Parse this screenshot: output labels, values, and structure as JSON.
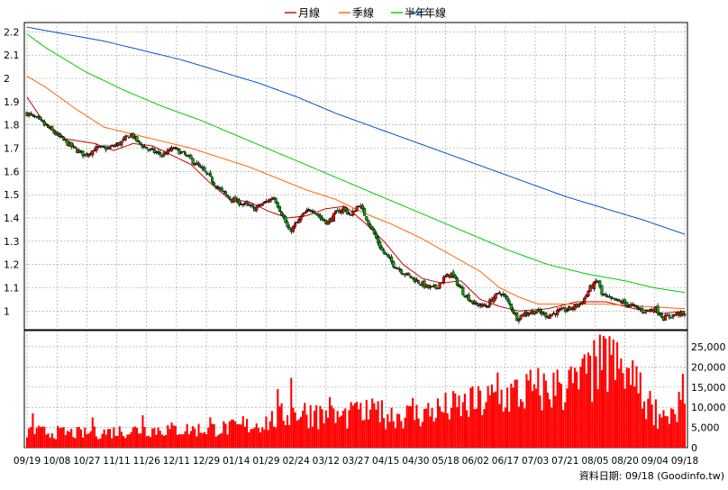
{
  "legend": {
    "items": [
      {
        "label": "月線",
        "color": "#cc0000"
      },
      {
        "label": "季線",
        "color": "#ff6600"
      },
      {
        "label": "半年",
        "color": "#00cc00"
      },
      {
        "label": "年線",
        "color": "#0055cc"
      }
    ]
  },
  "footer": {
    "source": "資料日期: 09/18 (Goodinfo.tw)"
  },
  "chart_data": {
    "type": "line",
    "price": {
      "ylim": [
        0.92,
        2.24
      ],
      "yticks": [
        1,
        1.1,
        1.2,
        1.3,
        1.4,
        1.5,
        1.6,
        1.7,
        1.8,
        1.9,
        2,
        2.1,
        2.2
      ],
      "ytick_labels": [
        "1",
        "1.1",
        "1.2",
        "1.3",
        "1.4",
        "1.5",
        "1.6",
        "1.7",
        "1.8",
        "1.9",
        "2",
        "2.1",
        "2.2"
      ],
      "series": [
        {
          "name": "月線",
          "color": "#cc0000",
          "keyframes": [
            [
              0,
              1.92
            ],
            [
              8,
              1.82
            ],
            [
              20,
              1.74
            ],
            [
              35,
              1.72
            ],
            [
              45,
              1.69
            ],
            [
              55,
              1.72
            ],
            [
              65,
              1.71
            ],
            [
              75,
              1.67
            ],
            [
              85,
              1.63
            ],
            [
              95,
              1.55
            ],
            [
              105,
              1.48
            ],
            [
              115,
              1.47
            ],
            [
              125,
              1.43
            ],
            [
              135,
              1.4
            ],
            [
              145,
              1.41
            ],
            [
              155,
              1.44
            ],
            [
              165,
              1.45
            ],
            [
              175,
              1.38
            ],
            [
              185,
              1.3
            ],
            [
              195,
              1.2
            ],
            [
              205,
              1.14
            ],
            [
              215,
              1.12
            ],
            [
              225,
              1.13
            ],
            [
              235,
              1.05
            ],
            [
              245,
              1.02
            ],
            [
              255,
              1.0
            ],
            [
              270,
              1.01
            ],
            [
              285,
              1.04
            ],
            [
              300,
              1.04
            ],
            [
              315,
              1.01
            ],
            [
              330,
              0.99
            ],
            [
              341,
              1.0
            ]
          ]
        },
        {
          "name": "季線",
          "color": "#ff6600",
          "keyframes": [
            [
              0,
              2.01
            ],
            [
              10,
              1.96
            ],
            [
              25,
              1.87
            ],
            [
              40,
              1.79
            ],
            [
              55,
              1.76
            ],
            [
              70,
              1.73
            ],
            [
              85,
              1.7
            ],
            [
              100,
              1.66
            ],
            [
              115,
              1.62
            ],
            [
              130,
              1.57
            ],
            [
              145,
              1.52
            ],
            [
              160,
              1.48
            ],
            [
              175,
              1.42
            ],
            [
              190,
              1.37
            ],
            [
              205,
              1.31
            ],
            [
              220,
              1.24
            ],
            [
              235,
              1.17
            ],
            [
              245,
              1.1
            ],
            [
              255,
              1.06
            ],
            [
              265,
              1.03
            ],
            [
              280,
              1.03
            ],
            [
              300,
              1.03
            ],
            [
              320,
              1.02
            ],
            [
              341,
              1.01
            ]
          ]
        },
        {
          "name": "半年",
          "color": "#00cc00",
          "keyframes": [
            [
              0,
              2.19
            ],
            [
              10,
              2.13
            ],
            [
              30,
              2.03
            ],
            [
              50,
              1.95
            ],
            [
              70,
              1.88
            ],
            [
              90,
              1.82
            ],
            [
              110,
              1.75
            ],
            [
              130,
              1.68
            ],
            [
              150,
              1.61
            ],
            [
              170,
              1.54
            ],
            [
              190,
              1.47
            ],
            [
              210,
              1.4
            ],
            [
              230,
              1.33
            ],
            [
              250,
              1.26
            ],
            [
              270,
              1.2
            ],
            [
              290,
              1.16
            ],
            [
              310,
              1.13
            ],
            [
              325,
              1.1
            ],
            [
              341,
              1.08
            ]
          ]
        },
        {
          "name": "年線",
          "color": "#0055cc",
          "keyframes": [
            [
              0,
              2.22
            ],
            [
              20,
              2.19
            ],
            [
              40,
              2.16
            ],
            [
              60,
              2.12
            ],
            [
              80,
              2.08
            ],
            [
              100,
              2.03
            ],
            [
              120,
              1.98
            ],
            [
              140,
              1.92
            ],
            [
              160,
              1.85
            ],
            [
              180,
              1.79
            ],
            [
              200,
              1.73
            ],
            [
              220,
              1.67
            ],
            [
              240,
              1.61
            ],
            [
              260,
              1.55
            ],
            [
              280,
              1.49
            ],
            [
              300,
              1.44
            ],
            [
              320,
              1.39
            ],
            [
              341,
              1.33
            ]
          ]
        }
      ],
      "close_keyframes": [
        [
          0,
          1.85
        ],
        [
          6,
          1.82
        ],
        [
          12,
          1.78
        ],
        [
          18,
          1.74
        ],
        [
          24,
          1.7
        ],
        [
          30,
          1.67
        ],
        [
          36,
          1.7
        ],
        [
          42,
          1.7
        ],
        [
          48,
          1.72
        ],
        [
          54,
          1.76
        ],
        [
          58,
          1.72
        ],
        [
          64,
          1.69
        ],
        [
          70,
          1.67
        ],
        [
          76,
          1.7
        ],
        [
          82,
          1.67
        ],
        [
          88,
          1.63
        ],
        [
          94,
          1.58
        ],
        [
          100,
          1.52
        ],
        [
          106,
          1.48
        ],
        [
          112,
          1.46
        ],
        [
          118,
          1.44
        ],
        [
          124,
          1.47
        ],
        [
          128,
          1.49
        ],
        [
          132,
          1.42
        ],
        [
          136,
          1.34
        ],
        [
          140,
          1.38
        ],
        [
          144,
          1.42
        ],
        [
          148,
          1.44
        ],
        [
          152,
          1.4
        ],
        [
          156,
          1.38
        ],
        [
          160,
          1.42
        ],
        [
          164,
          1.44
        ],
        [
          168,
          1.41
        ],
        [
          172,
          1.46
        ],
        [
          176,
          1.4
        ],
        [
          180,
          1.33
        ],
        [
          184,
          1.26
        ],
        [
          190,
          1.2
        ],
        [
          196,
          1.16
        ],
        [
          202,
          1.13
        ],
        [
          208,
          1.1
        ],
        [
          212,
          1.1
        ],
        [
          216,
          1.14
        ],
        [
          220,
          1.16
        ],
        [
          226,
          1.08
        ],
        [
          232,
          1.03
        ],
        [
          238,
          1.02
        ],
        [
          242,
          1.06
        ],
        [
          246,
          1.08
        ],
        [
          250,
          1.03
        ],
        [
          254,
          0.97
        ],
        [
          258,
          0.99
        ],
        [
          264,
          1.0
        ],
        [
          270,
          0.98
        ],
        [
          276,
          1.0
        ],
        [
          282,
          1.01
        ],
        [
          288,
          1.04
        ],
        [
          292,
          1.1
        ],
        [
          296,
          1.13
        ],
        [
          298,
          1.07
        ],
        [
          302,
          1.05
        ],
        [
          308,
          1.04
        ],
        [
          314,
          1.02
        ],
        [
          320,
          1.0
        ],
        [
          326,
          1.01
        ],
        [
          330,
          0.97
        ],
        [
          334,
          0.98
        ],
        [
          338,
          0.99
        ],
        [
          341,
          0.98
        ]
      ]
    },
    "volume": {
      "ylim": [
        0,
        29000
      ],
      "yticks": [
        0,
        5000,
        10000,
        15000,
        20000,
        25000
      ],
      "ytick_labels": [
        "0",
        "5,000",
        "10,000",
        "15,000",
        "20,000",
        "25,000"
      ],
      "color": "#ff0000",
      "keyframes": [
        [
          0,
          4000
        ],
        [
          30,
          3500
        ],
        [
          60,
          4500
        ],
        [
          90,
          4500
        ],
        [
          110,
          5000
        ],
        [
          125,
          6500
        ],
        [
          140,
          9000
        ],
        [
          160,
          7500
        ],
        [
          180,
          8500
        ],
        [
          200,
          8000
        ],
        [
          215,
          9500
        ],
        [
          230,
          10500
        ],
        [
          245,
          12500
        ],
        [
          260,
          14000
        ],
        [
          275,
          14500
        ],
        [
          290,
          17000
        ],
        [
          300,
          21000
        ],
        [
          310,
          18000
        ],
        [
          320,
          12000
        ],
        [
          330,
          7000
        ],
        [
          341,
          10500
        ]
      ],
      "peaks": [
        [
          3,
          8500
        ],
        [
          34,
          7500
        ],
        [
          60,
          8000
        ],
        [
          95,
          7500
        ],
        [
          112,
          7800
        ],
        [
          130,
          14500
        ],
        [
          137,
          17300
        ],
        [
          150,
          10500
        ],
        [
          157,
          12500
        ],
        [
          170,
          11000
        ],
        [
          182,
          11500
        ],
        [
          200,
          12300
        ],
        [
          230,
          14800
        ],
        [
          244,
          18600
        ],
        [
          256,
          12000
        ],
        [
          264,
          14600
        ],
        [
          276,
          16200
        ],
        [
          284,
          19800
        ],
        [
          292,
          22800
        ],
        [
          298,
          19200
        ],
        [
          302,
          27600
        ],
        [
          304,
          26800
        ],
        [
          316,
          20200
        ],
        [
          324,
          10700
        ],
        [
          330,
          9300
        ],
        [
          336,
          8300
        ],
        [
          340,
          18300
        ]
      ]
    },
    "x": {
      "n": 342,
      "tick_labels": [
        "09/19",
        "10/08",
        "10/27",
        "11/11",
        "11/26",
        "12/11",
        "12/29",
        "01/14",
        "01/29",
        "02/24",
        "03/12",
        "03/27",
        "04/15",
        "04/30",
        "05/18",
        "06/02",
        "06/17",
        "07/03",
        "07/21",
        "08/05",
        "08/20",
        "09/04",
        "09/18"
      ]
    },
    "grid": true,
    "legend_position": "top-center"
  }
}
